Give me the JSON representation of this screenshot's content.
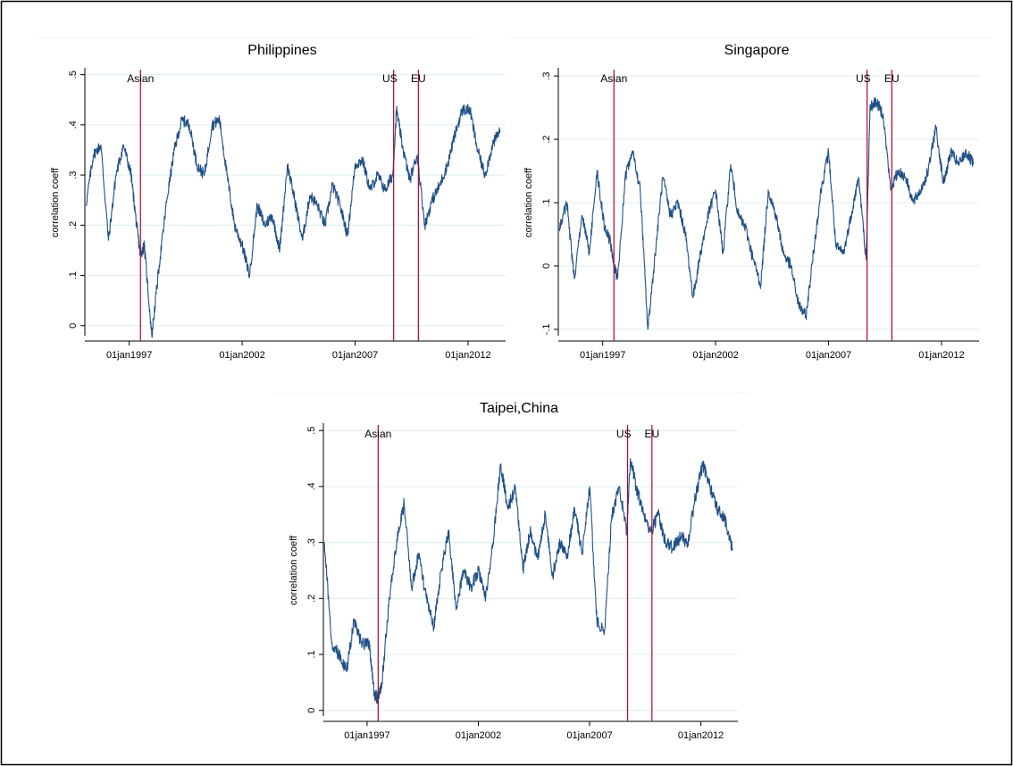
{
  "colors": {
    "series": "#1f4f86",
    "event_line": "#b5002f",
    "grid": "#dcefef",
    "axis": "#000000",
    "frame": "#000000",
    "background": "#ffffff"
  },
  "chart_data": [
    {
      "type": "line",
      "title": "Philippines",
      "ylabel": "correlation coeff",
      "xlabel": "",
      "ylim": [
        -0.02,
        0.51
      ],
      "yticks": [
        0,
        0.1,
        0.2,
        0.3,
        0.4,
        0.5
      ],
      "ytick_labels": [
        "0",
        ".1",
        ".2",
        ".3",
        ".4",
        ".5"
      ],
      "xlim": [
        "1995-01-15",
        "2013-08-30"
      ],
      "xticks": [
        "1997-01-01",
        "2002-01-01",
        "2007-01-01",
        "2012-01-01"
      ],
      "xtick_labels": [
        "01jan1997",
        "01jan2002",
        "01jan2007",
        "01jan2012"
      ],
      "grid": true,
      "events": [
        {
          "label": "Asian",
          "date": "1997-07-02"
        },
        {
          "label": "US",
          "date": "2008-09-15"
        },
        {
          "label": "EU",
          "date": "2009-10-20"
        }
      ],
      "series": [
        {
          "x": [
            "1995-02-01",
            "1995-06-01",
            "1995-10-01",
            "1996-02-01",
            "1996-06-01",
            "1996-10-01",
            "1997-02-01",
            "1997-05-01",
            "1997-07-01",
            "1997-09-01",
            "1998-01-01",
            "1998-05-01",
            "1998-09-01",
            "1999-01-01",
            "1999-05-01",
            "1999-09-01",
            "2000-01-01",
            "2000-05-01",
            "2000-09-01",
            "2001-01-01",
            "2001-05-01",
            "2001-09-01",
            "2002-01-01",
            "2002-05-01",
            "2002-09-01",
            "2003-01-01",
            "2003-05-01",
            "2003-09-01",
            "2004-01-01",
            "2004-05-01",
            "2004-09-01",
            "2005-01-01",
            "2005-05-01",
            "2005-09-01",
            "2006-01-01",
            "2006-05-01",
            "2006-09-01",
            "2007-01-01",
            "2007-05-01",
            "2007-09-01",
            "2008-01-01",
            "2008-05-01",
            "2008-09-01",
            "2008-11-01",
            "2009-02-01",
            "2009-06-01",
            "2009-10-01",
            "2010-02-01",
            "2010-06-01",
            "2010-10-01",
            "2011-02-01",
            "2011-06-01",
            "2011-10-01",
            "2012-02-01",
            "2012-06-01",
            "2012-10-01",
            "2013-02-01",
            "2013-06-01"
          ],
          "y": [
            0.24,
            0.34,
            0.36,
            0.17,
            0.3,
            0.36,
            0.3,
            0.2,
            0.14,
            0.16,
            -0.02,
            0.12,
            0.25,
            0.35,
            0.41,
            0.4,
            0.32,
            0.3,
            0.4,
            0.41,
            0.3,
            0.2,
            0.16,
            0.1,
            0.24,
            0.2,
            0.22,
            0.15,
            0.32,
            0.25,
            0.17,
            0.26,
            0.24,
            0.2,
            0.28,
            0.24,
            0.18,
            0.32,
            0.33,
            0.27,
            0.3,
            0.27,
            0.3,
            0.43,
            0.36,
            0.29,
            0.34,
            0.2,
            0.25,
            0.28,
            0.32,
            0.38,
            0.43,
            0.43,
            0.35,
            0.3,
            0.36,
            0.39
          ]
        }
      ]
    },
    {
      "type": "line",
      "title": "Singapore",
      "ylabel": "correlation coeff",
      "xlabel": "",
      "ylim": [
        -0.11,
        0.31
      ],
      "yticks": [
        -0.1,
        0,
        0.1,
        0.2,
        0.3
      ],
      "ytick_labels": [
        "-.1",
        "0",
        ".1",
        ".2",
        ".3"
      ],
      "xlim": [
        "1995-01-15",
        "2013-08-30"
      ],
      "xticks": [
        "1997-01-01",
        "2002-01-01",
        "2007-01-01",
        "2012-01-01"
      ],
      "xtick_labels": [
        "01jan1997",
        "01jan2002",
        "01jan2007",
        "01jan2012"
      ],
      "grid": true,
      "events": [
        {
          "label": "Asian",
          "date": "1997-07-02"
        },
        {
          "label": "US",
          "date": "2008-09-15"
        },
        {
          "label": "EU",
          "date": "2009-10-20"
        }
      ],
      "series": [
        {
          "x": [
            "1995-02-01",
            "1995-06-01",
            "1995-10-01",
            "1996-02-01",
            "1996-06-01",
            "1996-10-01",
            "1997-02-01",
            "1997-05-01",
            "1997-07-01",
            "1997-09-01",
            "1998-01-01",
            "1998-05-01",
            "1998-09-01",
            "1999-01-01",
            "1999-05-01",
            "1999-09-01",
            "2000-01-01",
            "2000-05-01",
            "2000-09-01",
            "2001-01-01",
            "2001-05-01",
            "2001-09-01",
            "2002-01-01",
            "2002-05-01",
            "2002-09-01",
            "2003-01-01",
            "2003-05-01",
            "2003-09-01",
            "2004-01-01",
            "2004-05-01",
            "2004-09-01",
            "2005-01-01",
            "2005-05-01",
            "2005-09-01",
            "2006-01-01",
            "2006-05-01",
            "2006-09-01",
            "2007-01-01",
            "2007-05-01",
            "2007-09-01",
            "2008-01-01",
            "2008-05-01",
            "2008-09-01",
            "2008-11-01",
            "2009-02-01",
            "2009-06-01",
            "2009-10-01",
            "2010-02-01",
            "2010-06-01",
            "2010-10-01",
            "2011-02-01",
            "2011-06-01",
            "2011-10-01",
            "2012-02-01",
            "2012-06-01",
            "2012-10-01",
            "2013-02-01",
            "2013-06-01"
          ],
          "y": [
            0.06,
            0.1,
            -0.02,
            0.08,
            0.02,
            0.15,
            0.06,
            0.04,
            0.0,
            -0.02,
            0.14,
            0.18,
            0.12,
            -0.1,
            0.02,
            0.14,
            0.08,
            0.1,
            0.05,
            -0.05,
            0.02,
            0.08,
            0.12,
            0.02,
            0.16,
            0.08,
            0.06,
            0.01,
            -0.03,
            0.12,
            0.08,
            0.02,
            0.0,
            -0.06,
            -0.08,
            0.02,
            0.12,
            0.18,
            0.03,
            0.02,
            0.08,
            0.14,
            0.01,
            0.25,
            0.26,
            0.24,
            0.12,
            0.15,
            0.14,
            0.1,
            0.12,
            0.15,
            0.22,
            0.13,
            0.18,
            0.16,
            0.18,
            0.16
          ]
        }
      ]
    },
    {
      "type": "line",
      "title": "Taipei,China",
      "ylabel": "correlation coeff",
      "xlabel": "",
      "ylim": [
        -0.01,
        0.51
      ],
      "yticks": [
        0,
        0.1,
        0.2,
        0.3,
        0.4,
        0.5
      ],
      "ytick_labels": [
        "0",
        ".1",
        ".2",
        ".3",
        ".4",
        ".5"
      ],
      "xlim": [
        "1995-01-15",
        "2013-08-30"
      ],
      "xticks": [
        "1997-01-01",
        "2002-01-01",
        "2007-01-01",
        "2012-01-01"
      ],
      "xtick_labels": [
        "01jan1997",
        "01jan2002",
        "01jan2007",
        "01jan2012"
      ],
      "grid": true,
      "events": [
        {
          "label": "Asian",
          "date": "1997-07-02"
        },
        {
          "label": "US",
          "date": "2008-09-15"
        },
        {
          "label": "EU",
          "date": "2009-10-20"
        }
      ],
      "series": [
        {
          "x": [
            "1995-02-01",
            "1995-06-01",
            "1995-10-01",
            "1996-02-01",
            "1996-06-01",
            "1996-10-01",
            "1997-02-01",
            "1997-05-01",
            "1997-07-01",
            "1997-09-01",
            "1998-01-01",
            "1998-05-01",
            "1998-09-01",
            "1999-01-01",
            "1999-05-01",
            "1999-09-01",
            "2000-01-01",
            "2000-05-01",
            "2000-09-01",
            "2001-01-01",
            "2001-05-01",
            "2001-09-01",
            "2002-01-01",
            "2002-05-01",
            "2002-09-01",
            "2003-01-01",
            "2003-05-01",
            "2003-09-01",
            "2004-01-01",
            "2004-05-01",
            "2004-09-01",
            "2005-01-01",
            "2005-05-01",
            "2005-09-01",
            "2006-01-01",
            "2006-05-01",
            "2006-09-01",
            "2007-01-01",
            "2007-05-01",
            "2007-09-01",
            "2008-01-01",
            "2008-05-01",
            "2008-09-01",
            "2008-11-01",
            "2009-02-01",
            "2009-06-01",
            "2009-10-01",
            "2010-02-01",
            "2010-06-01",
            "2010-10-01",
            "2011-02-01",
            "2011-06-01",
            "2011-10-01",
            "2012-02-01",
            "2012-06-01",
            "2012-10-01",
            "2013-02-01",
            "2013-06-01"
          ],
          "y": [
            0.3,
            0.12,
            0.1,
            0.07,
            0.16,
            0.12,
            0.12,
            0.03,
            0.02,
            0.05,
            0.2,
            0.3,
            0.37,
            0.22,
            0.28,
            0.2,
            0.15,
            0.25,
            0.32,
            0.18,
            0.25,
            0.22,
            0.25,
            0.2,
            0.3,
            0.44,
            0.36,
            0.4,
            0.25,
            0.32,
            0.27,
            0.35,
            0.24,
            0.3,
            0.28,
            0.36,
            0.28,
            0.4,
            0.16,
            0.14,
            0.35,
            0.4,
            0.32,
            0.45,
            0.4,
            0.35,
            0.32,
            0.35,
            0.3,
            0.29,
            0.31,
            0.3,
            0.38,
            0.44,
            0.4,
            0.36,
            0.34,
            0.29
          ]
        }
      ]
    }
  ]
}
